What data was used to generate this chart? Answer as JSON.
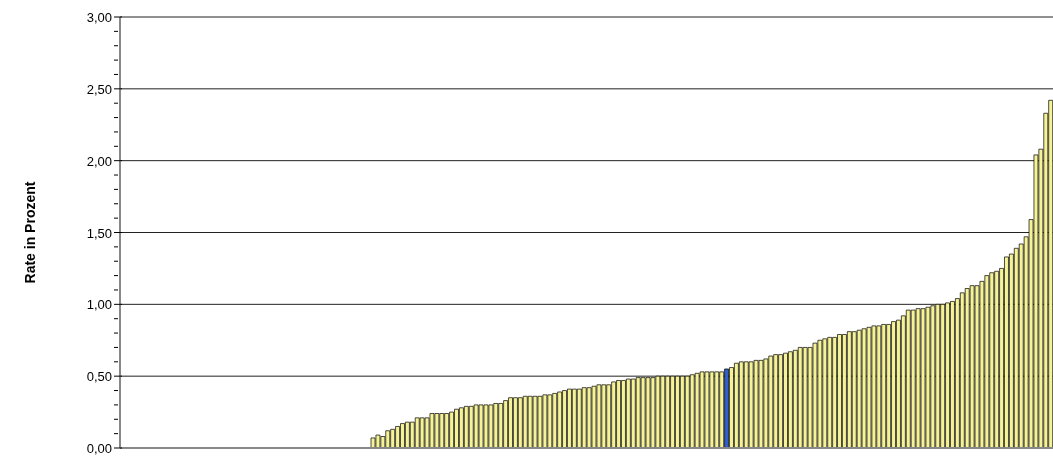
{
  "chart_data": {
    "type": "bar",
    "ylabel": "Rate in Prozent",
    "categories": [
      null,
      null,
      null,
      null,
      null,
      null,
      null,
      null,
      null,
      null,
      null,
      null,
      null,
      null,
      null,
      null,
      null,
      null,
      null,
      null,
      null,
      null,
      null,
      null,
      null,
      null,
      null,
      null,
      null,
      null,
      null,
      null,
      null,
      null,
      null,
      null,
      null,
      null,
      null,
      null,
      null,
      null,
      null,
      null,
      null,
      null,
      null,
      null,
      null,
      null,
      null,
      null,
      null,
      null,
      null,
      null,
      null,
      null,
      null,
      null,
      null,
      null,
      null,
      null,
      null,
      null,
      null,
      null,
      null,
      null,
      null,
      null,
      null,
      null,
      null,
      null,
      null,
      null,
      null,
      null,
      null,
      null,
      null,
      null,
      null,
      null,
      null,
      null,
      null,
      null,
      null,
      null,
      null,
      null,
      null,
      null,
      null,
      null,
      null,
      null,
      null,
      null,
      null,
      null,
      null,
      null,
      null,
      null,
      null,
      null,
      null,
      null,
      null,
      null,
      null,
      null,
      null,
      null,
      null,
      null,
      null,
      null,
      null,
      null,
      null,
      null,
      null,
      null,
      null,
      null,
      null,
      null,
      null,
      null,
      null,
      null,
      null,
      null,
      null,
      null,
      null,
      null,
      null,
      null,
      null,
      null,
      null,
      null,
      null,
      null,
      null,
      null,
      null,
      null,
      null,
      null,
      null,
      null,
      null,
      null,
      null,
      null,
      null,
      null,
      null,
      null,
      null,
      null,
      null,
      null,
      null,
      null,
      null,
      null,
      null,
      null,
      null,
      null,
      null,
      null,
      null,
      null,
      null,
      null,
      null,
      null,
      null,
      null,
      null,
      null
    ],
    "values": [
      0,
      0,
      0,
      0,
      0,
      0,
      0,
      0,
      0,
      0,
      0,
      0,
      0,
      0,
      0,
      0,
      0,
      0,
      0,
      0,
      0,
      0,
      0,
      0,
      0,
      0,
      0,
      0,
      0,
      0,
      0,
      0,
      0,
      0,
      0,
      0,
      0,
      0,
      0,
      0,
      0,
      0,
      0,
      0,
      0,
      0,
      0,
      0,
      0,
      0,
      0,
      0.07,
      0.09,
      0.08,
      0.12,
      0.13,
      0.15,
      0.17,
      0.18,
      0.18,
      0.21,
      0.21,
      0.21,
      0.24,
      0.24,
      0.24,
      0.24,
      0.25,
      0.27,
      0.28,
      0.29,
      0.29,
      0.3,
      0.3,
      0.3,
      0.3,
      0.31,
      0.31,
      0.33,
      0.35,
      0.35,
      0.35,
      0.36,
      0.36,
      0.36,
      0.36,
      0.37,
      0.37,
      0.38,
      0.39,
      0.4,
      0.41,
      0.41,
      0.41,
      0.42,
      0.42,
      0.43,
      0.44,
      0.44,
      0.44,
      0.46,
      0.47,
      0.47,
      0.48,
      0.48,
      0.49,
      0.49,
      0.49,
      0.49,
      0.5,
      0.5,
      0.5,
      0.5,
      0.5,
      0.5,
      0.5,
      0.51,
      0.52,
      0.53,
      0.53,
      0.53,
      0.53,
      0.53,
      0.55,
      0.56,
      0.59,
      0.6,
      0.6,
      0.6,
      0.61,
      0.61,
      0.62,
      0.64,
      0.65,
      0.65,
      0.66,
      0.67,
      0.68,
      0.7,
      0.7,
      0.7,
      0.73,
      0.75,
      0.76,
      0.77,
      0.77,
      0.79,
      0.79,
      0.81,
      0.81,
      0.82,
      0.83,
      0.84,
      0.85,
      0.85,
      0.86,
      0.86,
      0.88,
      0.89,
      0.92,
      0.96,
      0.96,
      0.97,
      0.97,
      0.98,
      0.99,
      1.0,
      1.0,
      1.01,
      1.02,
      1.04,
      1.08,
      1.11,
      1.13,
      1.13,
      1.16,
      1.2,
      1.22,
      1.23,
      1.25,
      1.33,
      1.35,
      1.39,
      1.42,
      1.47,
      1.59,
      2.04,
      2.08,
      2.33,
      2.42
    ],
    "colors": [
      "#f6f296",
      "#f6f296",
      "#f6f296",
      "#f6f296",
      "#f6f296",
      "#f6f296",
      "#f6f296",
      "#f6f296",
      "#f6f296",
      "#f6f296",
      "#f6f296",
      "#f6f296",
      "#f6f296",
      "#f6f296",
      "#f6f296",
      "#f6f296",
      "#f6f296",
      "#f6f296",
      "#f6f296",
      "#f6f296",
      "#f6f296",
      "#f6f296",
      "#f6f296",
      "#f6f296",
      "#f6f296",
      "#f6f296",
      "#f6f296",
      "#f6f296",
      "#f6f296",
      "#f6f296",
      "#f6f296",
      "#f6f296",
      "#f6f296",
      "#f6f296",
      "#f6f296",
      "#f6f296",
      "#f6f296",
      "#f6f296",
      "#f6f296",
      "#f6f296",
      "#f6f296",
      "#f6f296",
      "#f6f296",
      "#f6f296",
      "#f6f296",
      "#f6f296",
      "#f6f296",
      "#f6f296",
      "#f6f296",
      "#f6f296",
      "#f6f296",
      "#f6f296",
      "#f6f296",
      "#f6f296",
      "#f6f296",
      "#f6f296",
      "#f6f296",
      "#f6f296",
      "#f6f296",
      "#f6f296",
      "#f6f296",
      "#f6f296",
      "#f6f296",
      "#f6f296",
      "#f6f296",
      "#f6f296",
      "#f6f296",
      "#f6f296",
      "#f6f296",
      "#f6f296",
      "#f6f296",
      "#f6f296",
      "#f6f296",
      "#f6f296",
      "#f6f296",
      "#f6f296",
      "#f6f296",
      "#f6f296",
      "#f6f296",
      "#f6f296",
      "#f6f296",
      "#f6f296",
      "#f6f296",
      "#f6f296",
      "#f6f296",
      "#f6f296",
      "#f6f296",
      "#f6f296",
      "#f6f296",
      "#f6f296",
      "#f6f296",
      "#f6f296",
      "#f6f296",
      "#f6f296",
      "#f6f296",
      "#f6f296",
      "#f6f296",
      "#f6f296",
      "#f6f296",
      "#f6f296",
      "#f6f296",
      "#f6f296",
      "#f6f296",
      "#f6f296",
      "#f6f296",
      "#f6f296",
      "#f6f296",
      "#f6f296",
      "#f6f296",
      "#f6f296",
      "#f6f296",
      "#f6f296",
      "#f6f296",
      "#f6f296",
      "#f6f296",
      "#f6f296",
      "#f6f296",
      "#f6f296",
      "#f6f296",
      "#f6f296",
      "#f6f296",
      "#f6f296",
      "#f6f296",
      "#2f5fd0",
      "#f6f296",
      "#f6f296",
      "#f6f296",
      "#f6f296",
      "#f6f296",
      "#f6f296",
      "#f6f296",
      "#f6f296",
      "#f6f296",
      "#f6f296",
      "#f6f296",
      "#f6f296",
      "#f6f296",
      "#f6f296",
      "#f6f296",
      "#f6f296",
      "#f6f296",
      "#f6f296",
      "#f6f296",
      "#f6f296",
      "#f6f296",
      "#f6f296",
      "#f6f296",
      "#f6f296",
      "#f6f296",
      "#f6f296",
      "#f6f296",
      "#f6f296",
      "#f6f296",
      "#f6f296",
      "#f6f296",
      "#f6f296",
      "#f6f296",
      "#f6f296",
      "#f6f296",
      "#f6f296",
      "#f6f296",
      "#f6f296",
      "#f6f296",
      "#f6f296",
      "#f6f296",
      "#f6f296",
      "#f6f296",
      "#f6f296",
      "#f6f296",
      "#f6f296",
      "#f6f296",
      "#f6f296",
      "#f6f296",
      "#f6f296",
      "#f6f296",
      "#f6f296",
      "#f6f296",
      "#f6f296",
      "#f6f296",
      "#f6f296",
      "#f6f296",
      "#f6f296",
      "#f6f296",
      "#f6f296",
      "#f6f296",
      "#f6f296",
      "#f6f296",
      "#f6f296",
      "#f6f296",
      "#f6f296"
    ],
    "ylim": [
      0,
      3
    ],
    "yticks": [
      {
        "value": 0,
        "label": "0,00"
      },
      {
        "value": 0.1,
        "label": null
      },
      {
        "value": 0.2,
        "label": null
      },
      {
        "value": 0.3,
        "label": null
      },
      {
        "value": 0.4,
        "label": null
      },
      {
        "value": 0.5,
        "label": "0,50"
      },
      {
        "value": 0.6,
        "label": null
      },
      {
        "value": 0.7,
        "label": null
      },
      {
        "value": 0.8,
        "label": null
      },
      {
        "value": 0.9,
        "label": null
      },
      {
        "value": 1,
        "label": "1,00"
      },
      {
        "value": 1.1,
        "label": null
      },
      {
        "value": 1.2,
        "label": null
      },
      {
        "value": 1.3,
        "label": null
      },
      {
        "value": 1.4,
        "label": null
      },
      {
        "value": 1.5,
        "label": "1,50"
      },
      {
        "value": 1.6,
        "label": null
      },
      {
        "value": 1.7,
        "label": null
      },
      {
        "value": 1.8,
        "label": null
      },
      {
        "value": 1.9,
        "label": null
      },
      {
        "value": 2,
        "label": "2,00"
      },
      {
        "value": 2.1,
        "label": null
      },
      {
        "value": 2.2,
        "label": null
      },
      {
        "value": 2.3,
        "label": null
      },
      {
        "value": 2.4,
        "label": null
      },
      {
        "value": 2.5,
        "label": "2,50"
      },
      {
        "value": 2.6,
        "label": null
      },
      {
        "value": 2.7,
        "label": null
      },
      {
        "value": 2.8,
        "label": null
      },
      {
        "value": 2.9,
        "label": null
      },
      {
        "value": 3,
        "label": "3,00"
      }
    ],
    "grid": "y",
    "tick_labels": "y"
  }
}
